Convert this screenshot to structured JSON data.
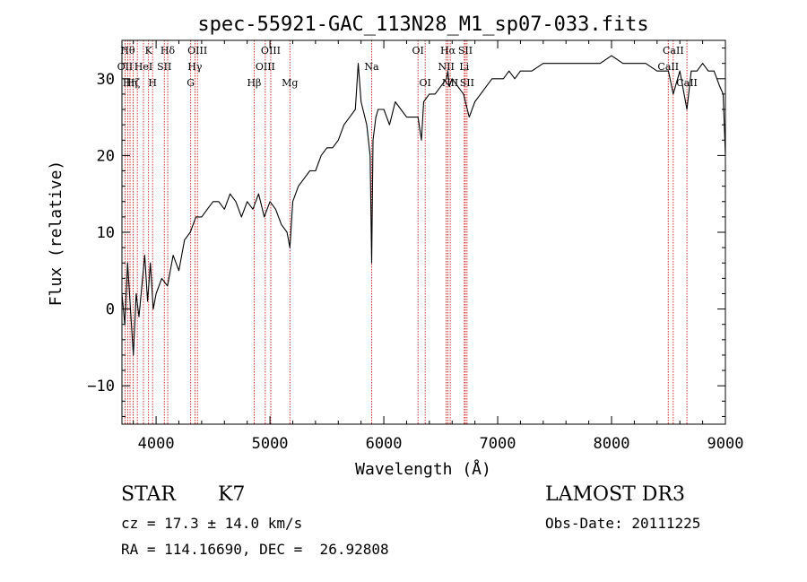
{
  "chart_data": {
    "type": "line",
    "title": "spec-55921-GAC_113N28_M1_sp07-033.fits",
    "xlabel": "Wavelength (Å)",
    "ylabel": "Flux (relative)",
    "xlim": [
      3700,
      9000
    ],
    "ylim": [
      -15,
      35
    ],
    "xticks": [
      4000,
      5000,
      6000,
      7000,
      8000,
      9000
    ],
    "yticks": [
      -10,
      0,
      10,
      20,
      30
    ],
    "grid": false,
    "series": [
      {
        "name": "flux",
        "color": "#000000",
        "x": [
          3700,
          3725,
          3750,
          3775,
          3800,
          3825,
          3850,
          3875,
          3900,
          3925,
          3950,
          3975,
          4000,
          4050,
          4100,
          4150,
          4200,
          4250,
          4300,
          4350,
          4400,
          4450,
          4500,
          4550,
          4600,
          4650,
          4700,
          4750,
          4800,
          4850,
          4900,
          4950,
          5000,
          5050,
          5100,
          5150,
          5175,
          5200,
          5250,
          5300,
          5350,
          5400,
          5450,
          5500,
          5550,
          5600,
          5650,
          5700,
          5750,
          5775,
          5800,
          5850,
          5880,
          5893,
          5905,
          5930,
          5950,
          6000,
          6050,
          6100,
          6150,
          6200,
          6250,
          6300,
          6330,
          6350,
          6400,
          6450,
          6500,
          6550,
          6563,
          6575,
          6600,
          6650,
          6700,
          6750,
          6800,
          6850,
          6900,
          6950,
          7000,
          7050,
          7100,
          7150,
          7200,
          7300,
          7400,
          7500,
          7600,
          7700,
          7800,
          7900,
          8000,
          8100,
          8200,
          8300,
          8400,
          8500,
          8542,
          8600,
          8662,
          8700,
          8750,
          8800,
          8850,
          8900,
          8950,
          8980,
          9000
        ],
        "values": [
          2,
          -2,
          6,
          0,
          -6,
          2,
          -1,
          3,
          7,
          1,
          6,
          0,
          2,
          4,
          3,
          7,
          5,
          9,
          10,
          12,
          12,
          13,
          14,
          14,
          13,
          15,
          14,
          12,
          14,
          13,
          15,
          12,
          14,
          13,
          11,
          10,
          8,
          14,
          16,
          17,
          18,
          18,
          20,
          21,
          21,
          22,
          24,
          25,
          26,
          32,
          27,
          24,
          20,
          6,
          22,
          25,
          26,
          26,
          24,
          27,
          26,
          25,
          25,
          25,
          22,
          27,
          28,
          28,
          29,
          30,
          31,
          29,
          30,
          29,
          28,
          25,
          27,
          28,
          29,
          30,
          30,
          30,
          31,
          30,
          31,
          31,
          32,
          32,
          32,
          32,
          32,
          32,
          33,
          32,
          32,
          32,
          31,
          31,
          28,
          31,
          26,
          31,
          31,
          32,
          31,
          31,
          29,
          28,
          20
        ]
      }
    ],
    "lines": [
      {
        "wave": 3727,
        "label": "OII",
        "row": 1
      },
      {
        "wave": 3750,
        "label": "Hθ",
        "row": 0
      },
      {
        "wave": 3771,
        "label": "Hη",
        "row": 2
      },
      {
        "wave": 3798,
        "label": "Hζ",
        "row": 2
      },
      {
        "wave": 3835,
        "label": "",
        "row": 2
      },
      {
        "wave": 3889,
        "label": "HeI",
        "row": 1
      },
      {
        "wave": 3934,
        "label": "K",
        "row": 0
      },
      {
        "wave": 3969,
        "label": "H",
        "row": 2
      },
      {
        "wave": 4072,
        "label": "SII",
        "row": 1
      },
      {
        "wave": 4102,
        "label": "Hδ",
        "row": 0
      },
      {
        "wave": 4304,
        "label": "G",
        "row": 2
      },
      {
        "wave": 4341,
        "label": "Hγ",
        "row": 1
      },
      {
        "wave": 4363,
        "label": "OIII",
        "row": 0
      },
      {
        "wave": 4861,
        "label": "Hβ",
        "row": 2
      },
      {
        "wave": 4959,
        "label": "OIII",
        "row": 1
      },
      {
        "wave": 5007,
        "label": "OIII",
        "row": 0
      },
      {
        "wave": 5175,
        "label": "Mg",
        "row": 2
      },
      {
        "wave": 5893,
        "label": "Na",
        "row": 1
      },
      {
        "wave": 6300,
        "label": "OI",
        "row": 0
      },
      {
        "wave": 6363,
        "label": "OI",
        "row": 2
      },
      {
        "wave": 6548,
        "label": "NII",
        "row": 1
      },
      {
        "wave": 6563,
        "label": "Hα",
        "row": 0
      },
      {
        "wave": 6583,
        "label": "NII",
        "row": 2
      },
      {
        "wave": 6707,
        "label": "Li",
        "row": 1
      },
      {
        "wave": 6716,
        "label": "SII",
        "row": 0
      },
      {
        "wave": 6731,
        "label": "SII",
        "row": 2
      },
      {
        "wave": 8498,
        "label": "CaII",
        "row": 1
      },
      {
        "wave": 8542,
        "label": "CaII",
        "row": 0
      },
      {
        "wave": 8662,
        "label": "CaII",
        "row": 2
      }
    ]
  },
  "info": {
    "class": "STAR",
    "subclass": "K7",
    "survey": "LAMOST DR3",
    "cz": "cz = 17.3 ± 14.0 km/s",
    "obs_date": "Obs-Date: 20111225",
    "radec": "RA = 114.16690, DEC =  26.92808"
  }
}
